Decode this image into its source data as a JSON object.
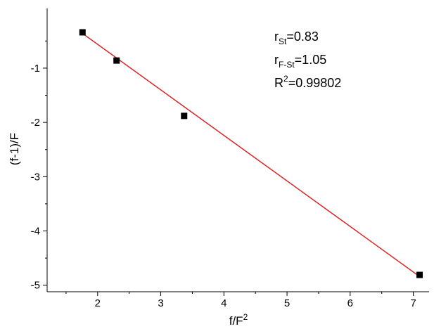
{
  "chart_data": {
    "type": "scatter",
    "xlabel": {
      "main": "f/F",
      "sup": "2"
    },
    "ylabel": "(f-1)/F",
    "xlim": [
      1.2,
      7.25
    ],
    "ylim": [
      -5.12,
      0.1
    ],
    "xticks": [
      2,
      3,
      4,
      5,
      6,
      7
    ],
    "yticks": [
      -5,
      -4,
      -3,
      -2,
      -1
    ],
    "xtick_labels": [
      "2",
      "3",
      "4",
      "5",
      "6",
      "7"
    ],
    "ytick_labels": [
      "-5",
      "-4",
      "-3",
      "-2",
      "-1"
    ],
    "grid": false,
    "series": [
      {
        "kind": "points",
        "marker": "square",
        "color": "#000000",
        "x": [
          1.76,
          2.3,
          3.37,
          7.1
        ],
        "y": [
          -0.34,
          -0.86,
          -1.88,
          -4.81
        ]
      },
      {
        "kind": "fit-line",
        "color": "#d62728",
        "x": [
          1.76,
          7.1
        ],
        "y": [
          -0.36,
          -4.84
        ]
      }
    ],
    "annotations": [
      {
        "main": "r",
        "sub": "St",
        "sup": "",
        "rest": "=0.83"
      },
      {
        "main": "r",
        "sub": "F-St",
        "sup": "",
        "rest": "=1.05"
      },
      {
        "main": "R",
        "sub": "",
        "sup": "2",
        "rest": "=0.99802"
      }
    ]
  }
}
